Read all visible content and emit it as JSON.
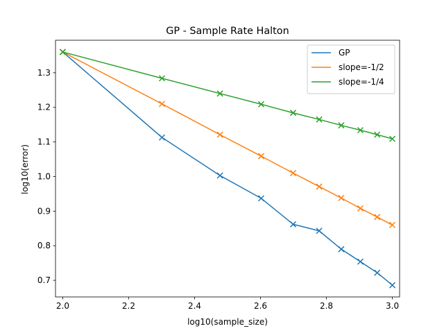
{
  "chart_data": {
    "type": "line",
    "title": "GP - Sample Rate Halton",
    "xlabel": "log10(sample_size)",
    "ylabel": "log10(error)",
    "xlim": [
      1.978,
      3.022
    ],
    "ylim": [
      0.652,
      1.394
    ],
    "x_ticks": [
      2.0,
      2.2,
      2.4,
      2.6,
      2.8,
      3.0
    ],
    "x_tick_labels": [
      "2.0",
      "2.2",
      "2.4",
      "2.6",
      "2.8",
      "3.0"
    ],
    "y_ticks": [
      0.7,
      0.8,
      0.9,
      1.0,
      1.1,
      1.2,
      1.3
    ],
    "y_tick_labels": [
      "0.7",
      "0.8",
      "0.9",
      "1.0",
      "1.1",
      "1.2",
      "1.3"
    ],
    "grid": false,
    "legend_position": "top-right",
    "marker": "x",
    "x": [
      2.0,
      2.301,
      2.477,
      2.602,
      2.699,
      2.778,
      2.845,
      2.903,
      2.954,
      3.0
    ],
    "series": [
      {
        "name": "GP",
        "color": "#1f77b4",
        "values": [
          1.36,
          1.113,
          1.003,
          0.937,
          0.862,
          0.843,
          0.79,
          0.754,
          0.722,
          0.686
        ]
      },
      {
        "name": "slope=-1/2",
        "color": "#ff7f0e",
        "values": [
          1.36,
          1.21,
          1.121,
          1.059,
          1.01,
          0.971,
          0.938,
          0.908,
          0.883,
          0.86
        ]
      },
      {
        "name": "slope=-1/4",
        "color": "#2ca02c",
        "values": [
          1.36,
          1.284,
          1.24,
          1.209,
          1.184,
          1.165,
          1.148,
          1.134,
          1.121,
          1.109
        ]
      }
    ]
  }
}
